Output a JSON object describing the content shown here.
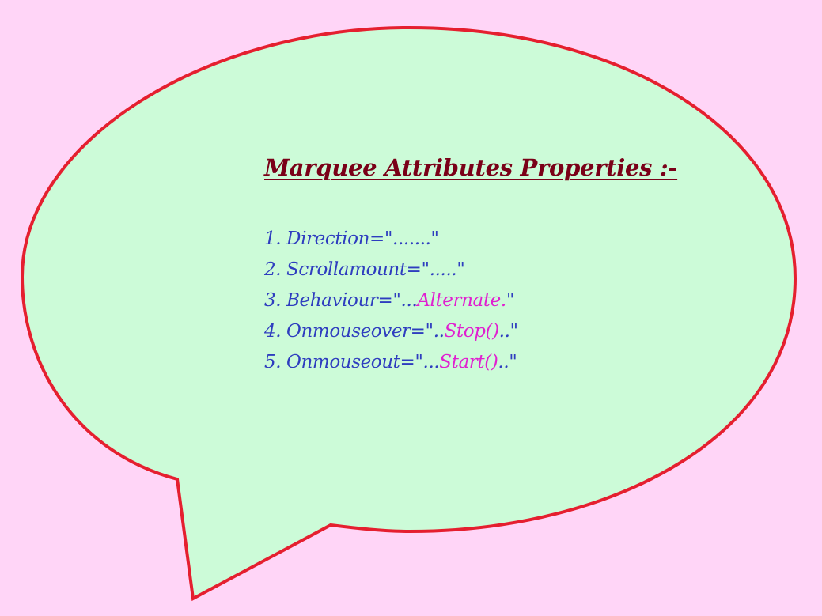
{
  "colors": {
    "page_background": "#FFD5F7",
    "bubble_fill": "#CCFBD8",
    "bubble_stroke": "#E51F2F",
    "title_color": "#7A0018",
    "text_blue": "#2E3DBF",
    "text_magenta": "#E01FD0"
  },
  "bubble": {
    "title": "Marquee Attributes Properties :-",
    "items": [
      {
        "label": "1. Direction=\".......\"",
        "highlight": "",
        "suffix": ""
      },
      {
        "label": "2. Scrollamount=\".....\"",
        "highlight": "",
        "suffix": ""
      },
      {
        "label": "3. Behaviour=\"...",
        "highlight": "Alternate.",
        "suffix": "\""
      },
      {
        "label": "4. Onmouseover=\"..",
        "highlight": "Stop()",
        "suffix": "..\""
      },
      {
        "label": "5. Onmouseout=\"...",
        "highlight": "Start()",
        "suffix": "..\""
      }
    ]
  }
}
